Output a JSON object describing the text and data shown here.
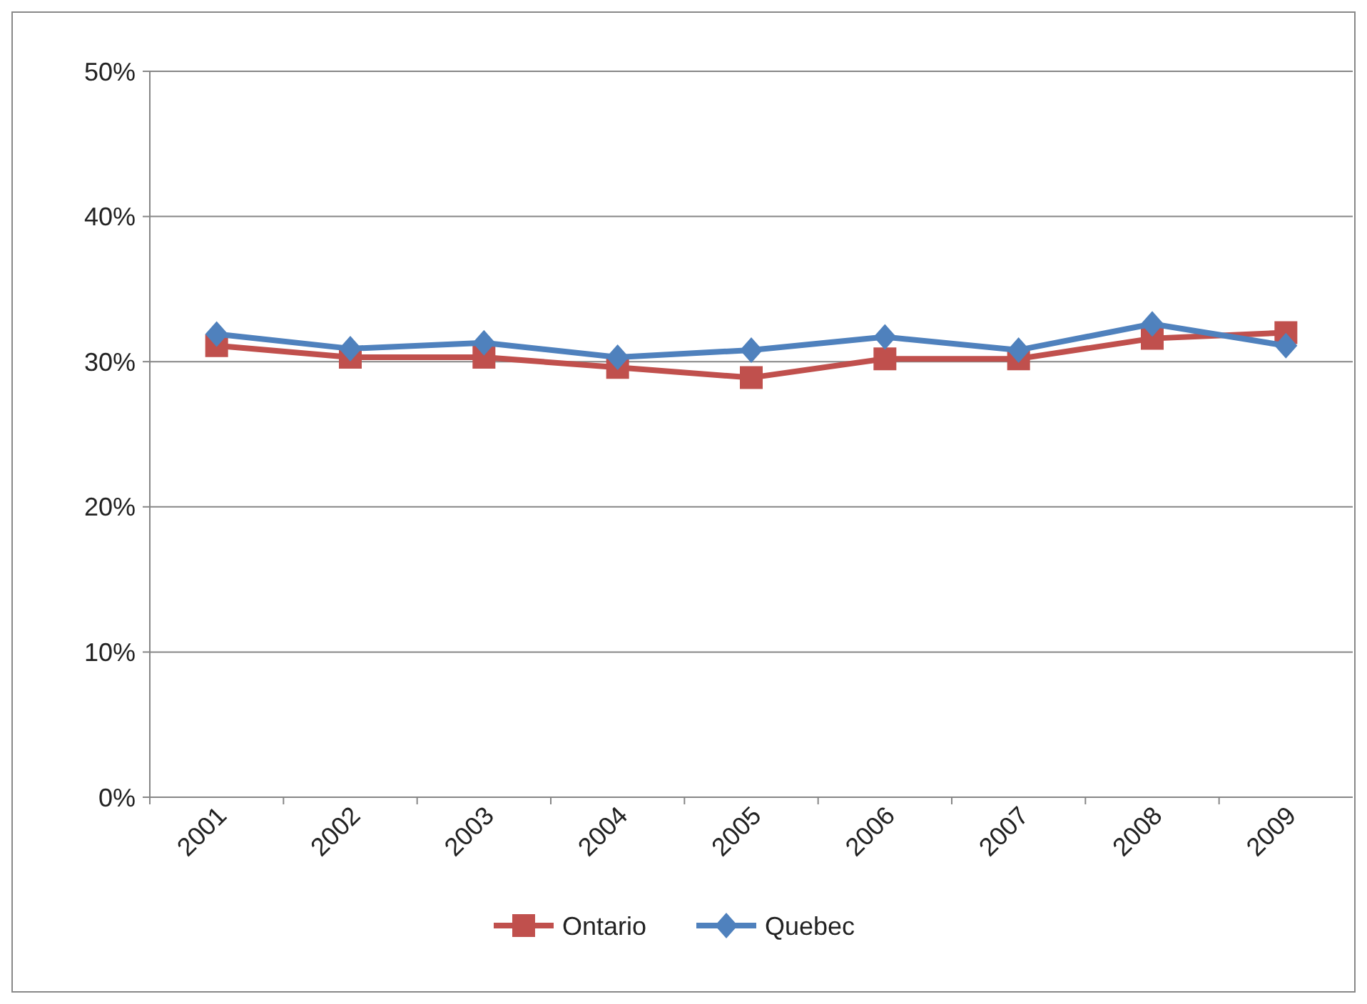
{
  "chart_data": {
    "type": "line",
    "categories": [
      "2001",
      "2002",
      "2003",
      "2004",
      "2005",
      "2006",
      "2007",
      "2008",
      "2009"
    ],
    "series": [
      {
        "name": "Ontario",
        "color": "#c0504d",
        "marker": "square",
        "values": [
          31.1,
          30.3,
          30.3,
          29.6,
          28.9,
          30.2,
          30.2,
          31.6,
          32.0
        ]
      },
      {
        "name": "Quebec",
        "color": "#4f81bd",
        "marker": "diamond",
        "values": [
          31.9,
          30.9,
          31.3,
          30.3,
          30.8,
          31.7,
          30.8,
          32.6,
          31.1
        ]
      }
    ],
    "ylim": [
      0,
      50
    ],
    "yticks": [
      {
        "value": 0,
        "label": "0%"
      },
      {
        "value": 10,
        "label": "10%"
      },
      {
        "value": 20,
        "label": "20%"
      },
      {
        "value": 30,
        "label": "30%"
      },
      {
        "value": 40,
        "label": "40%"
      },
      {
        "value": 50,
        "label": "50%"
      }
    ],
    "grid": "y",
    "legend": "bottom",
    "line_style": "solid"
  }
}
